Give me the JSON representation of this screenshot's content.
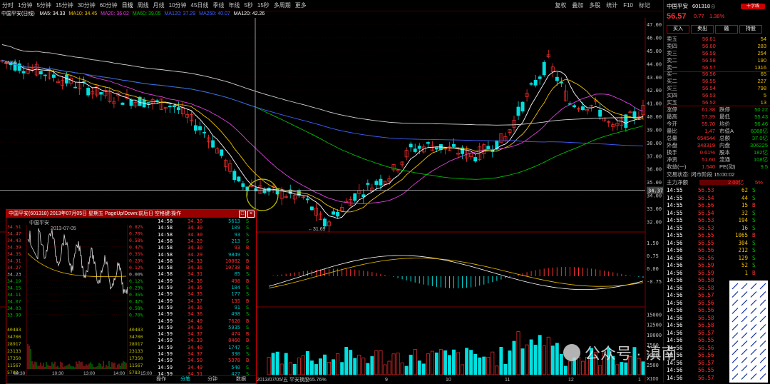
{
  "toolbar": {
    "tabs": [
      "分时",
      "1分钟",
      "5分钟",
      "15分钟",
      "30分钟",
      "60分钟",
      "日线",
      "周线",
      "月线",
      "10分钟",
      "45日线",
      "季线",
      "年线",
      "5秒",
      "15秒",
      "多周期",
      "更多"
    ],
    "active_index": 6,
    "right_menu": [
      "复权",
      "叠加",
      "多股",
      "统计",
      "F10",
      "标记"
    ]
  },
  "legend": {
    "title": "中国平安(日线)",
    "ma": [
      {
        "label": "MA5: 34.33",
        "color": "#ffffff"
      },
      {
        "label": "MA10: 34.45",
        "color": "#f0c000"
      },
      {
        "label": "MA20: 36.02",
        "color": "#e040e0"
      },
      {
        "label": "MA60: 39.05",
        "color": "#00c000"
      },
      {
        "label": "MA120: 37.29",
        "color": "#4060ff"
      },
      {
        "label": "MA250: 40.07",
        "color": "#4060ff"
      },
      {
        "label": "MA120: 42.26",
        "color": "#ffffff"
      }
    ]
  },
  "chart": {
    "price_ticks": [
      "47.00",
      "46.00",
      "45.00",
      "44.00",
      "43.00",
      "42.00",
      "41.00",
      "40.00",
      "39.00",
      "38.00",
      "37.00",
      "36.00",
      "35.00",
      "34.00",
      "33.00",
      "32.00"
    ],
    "current_line_label": "34.37",
    "low_label": "31.69",
    "high_label": "44.66",
    "macd_ticks": [
      "1.50",
      "0.75",
      "0.00",
      "-0.75"
    ],
    "vol_ticks": [
      "15000",
      "12500",
      "10000",
      "7500",
      "5000",
      "2500"
    ],
    "vol_unit": "X100",
    "bottom_label": "2013/07/05/五  平安换股65.76%",
    "x_labels": [
      "9",
      "10",
      "11",
      "12",
      "1"
    ],
    "colors": {
      "up": "#ff3030",
      "down": "#00e0e0",
      "grid": "#400000"
    }
  },
  "right": {
    "name": "中国平安",
    "code": "601318",
    "price": "56.57",
    "change": "0.77",
    "pct": "1.38%",
    "buttons": [
      "买入",
      "卖出",
      "融",
      "持股"
    ],
    "sells": [
      {
        "label": "卖五",
        "price": "56.61",
        "vol": "54"
      },
      {
        "label": "卖四",
        "price": "56.60",
        "vol": "283"
      },
      {
        "label": "卖三",
        "price": "56.59",
        "vol": "254"
      },
      {
        "label": "卖二",
        "price": "56.58",
        "vol": "190"
      },
      {
        "label": "卖一",
        "price": "56.57",
        "vol": "1316"
      }
    ],
    "buys": [
      {
        "label": "买一",
        "price": "56.56",
        "vol": "65"
      },
      {
        "label": "买二",
        "price": "56.55",
        "vol": "227"
      },
      {
        "label": "买三",
        "price": "56.54",
        "vol": "798"
      },
      {
        "label": "买四",
        "price": "56.53",
        "vol": "5"
      },
      {
        "label": "买五",
        "price": "56.52",
        "vol": "13"
      }
    ],
    "stats": [
      [
        "涨停",
        "61.38",
        "跌停",
        "50.22"
      ],
      [
        "最高",
        "57.39",
        "最低",
        "55.43"
      ],
      [
        "今开",
        "55.70",
        "均价",
        "56.46"
      ],
      [
        "量比",
        "1.47",
        "市值A",
        "6088亿"
      ],
      [
        "总量",
        "654544",
        "总额",
        "37.0亿"
      ],
      [
        "外盘",
        "348319",
        "内盘",
        "306225"
      ],
      [
        "换手",
        "0.61%",
        "股本",
        "182亿"
      ],
      [
        "净资",
        "51.60",
        "流通",
        "108亿"
      ],
      [
        "收益(一)",
        "1.540",
        "PE(动)",
        "9.5"
      ]
    ],
    "status": "交易状态: 闭市阶段 15:00:02",
    "flow_label": "主力净额",
    "flow_value": "2.00亿",
    "flow_pct": "5%",
    "ticks": [
      [
        "14:55",
        "56.53",
        "62",
        "S"
      ],
      [
        "14:55",
        "56.54",
        "44",
        "S"
      ],
      [
        "14:55",
        "56.56",
        "15",
        "B"
      ],
      [
        "14:55",
        "56.54",
        "32",
        "S"
      ],
      [
        "14:55",
        "56.53",
        "194",
        "S"
      ],
      [
        "14:55",
        "56.53",
        "16",
        "S"
      ],
      [
        "14:55",
        "56.55",
        "1065",
        "B"
      ],
      [
        "14:56",
        "56.55",
        "304",
        "S"
      ],
      [
        "14:56",
        "56.56",
        "212",
        "S"
      ],
      [
        "14:56",
        "56.56",
        "129",
        "S"
      ],
      [
        "14:56",
        "56.59",
        "52",
        "S"
      ],
      [
        "14:56",
        "56.59",
        "1",
        "B"
      ],
      [
        "14:56",
        "56.58",
        "",
        ""
      ],
      [
        "14:56",
        "56.58",
        "",
        ""
      ],
      [
        "14:56",
        "56.57",
        "",
        ""
      ],
      [
        "14:56",
        "56.56",
        "",
        ""
      ],
      [
        "14:56",
        "56.56",
        "",
        ""
      ],
      [
        "14:56",
        "56.58",
        "",
        ""
      ],
      [
        "14:56",
        "56.58",
        "",
        ""
      ],
      [
        "14:56",
        "56.57",
        "",
        ""
      ],
      [
        "14:56",
        "56.55",
        "",
        ""
      ],
      [
        "14:56",
        "56.56",
        "",
        ""
      ],
      [
        "14:56",
        "56.56",
        "",
        ""
      ],
      [
        "14:56",
        "56.57",
        "",
        ""
      ],
      [
        "14:56",
        "56.55",
        "",
        ""
      ],
      [
        "14:56",
        "56.57",
        "",
        ""
      ]
    ]
  },
  "popup": {
    "title": "中国平安(601318) 2013年07月05日 星期五 PageUp/Down:前后日 空格键:操作",
    "inner_name": "中国平安",
    "inner_date": "2013-07-05",
    "left_prices": [
      "34.51",
      "34.47",
      "34.43",
      "34.39",
      "34.35",
      "34.31",
      "34.27",
      "34.23",
      "34.19",
      "34.15",
      "34.11",
      "34.07",
      "34.03",
      "33.99"
    ],
    "right_pcts": [
      "0.82%",
      "0.70%",
      "0.58%",
      "0.47%",
      "0.35%",
      "0.23%",
      "0.12%",
      "0.00%",
      "0.12%",
      "0.23%",
      "0.35%",
      "0.47%",
      "0.58%",
      "0.70%"
    ],
    "vol_left": [
      "40483",
      "34700",
      "28917",
      "23133",
      "17350",
      "11567",
      "5783"
    ],
    "time_labels": [
      "09:30",
      "10:30",
      "13:00",
      "14:00",
      "15:00"
    ],
    "ticks": [
      [
        "14:58",
        "34.30",
        "5613",
        "S"
      ],
      [
        "14:58",
        "34.30",
        "109",
        "S"
      ],
      [
        "14:58",
        "34.30",
        "93",
        "S"
      ],
      [
        "14:58",
        "34.29",
        "213",
        "S"
      ],
      [
        "14:58",
        "34.30",
        "93",
        "B"
      ],
      [
        "14:58",
        "34.29",
        "9849",
        "S"
      ],
      [
        "14:58",
        "34.33",
        "10082",
        "B"
      ],
      [
        "14:58",
        "34.36",
        "10738",
        "B"
      ],
      [
        "14:58",
        "34.31",
        "85",
        "S"
      ],
      [
        "14:59",
        "34.36",
        "498",
        "B"
      ],
      [
        "14:59",
        "34.35",
        "184",
        "S"
      ],
      [
        "14:59",
        "34.35",
        "177",
        "S"
      ],
      [
        "14:59",
        "34.37",
        "135",
        "B"
      ],
      [
        "14:59",
        "34.36",
        "91",
        "S"
      ],
      [
        "14:59",
        "34.36",
        "498",
        "S"
      ],
      [
        "14:59",
        "34.49",
        "7620",
        "B"
      ],
      [
        "14:59",
        "34.36",
        "5935",
        "S"
      ],
      [
        "14:59",
        "34.37",
        "474",
        "B"
      ],
      [
        "14:59",
        "34.39",
        "8460",
        "B"
      ],
      [
        "14:59",
        "34.40",
        "1747",
        "S"
      ],
      [
        "14:59",
        "34.37",
        "330",
        "S"
      ],
      [
        "14:59",
        "34.50",
        "5378",
        "B"
      ],
      [
        "14:59",
        "34.49",
        "540",
        "S"
      ],
      [
        "14:59",
        "34.51",
        "427",
        "S"
      ]
    ],
    "tabs": [
      "操作",
      "分笔",
      "分钟",
      "数据"
    ]
  },
  "watermark": {
    "text": "公众号 · 滇南"
  }
}
